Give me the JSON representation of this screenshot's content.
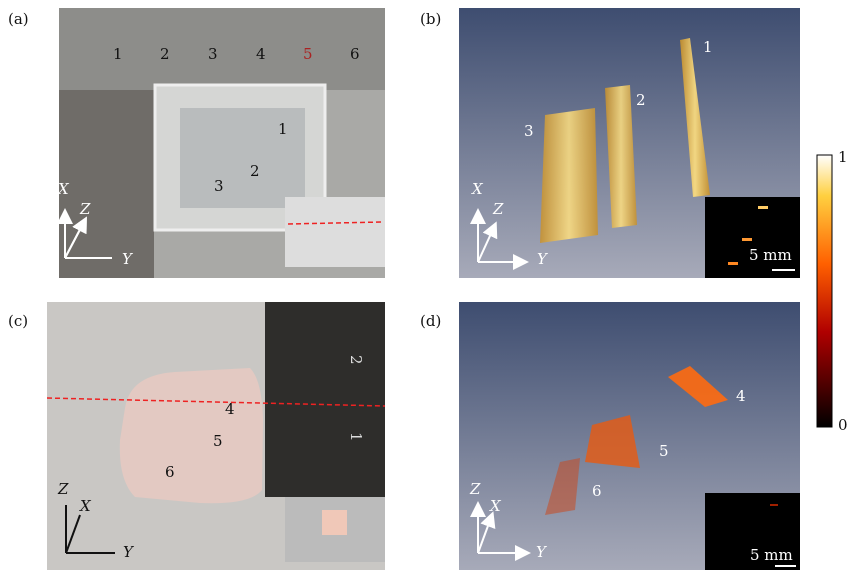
{
  "panels": [
    {
      "label": "(a)",
      "markers": [
        "1",
        "2",
        "3"
      ],
      "axes": [
        "X",
        "Z",
        "Y"
      ],
      "ruler": [
        "1",
        "2",
        "3",
        "4",
        "5",
        "6"
      ]
    },
    {
      "label": "(b)",
      "markers": [
        "1",
        "2",
        "3"
      ],
      "axes": [
        "X",
        "Z",
        "Y"
      ],
      "scale_bar": "5 mm"
    },
    {
      "label": "(c)",
      "markers": [
        "4",
        "5",
        "6"
      ],
      "axes": [
        "Z",
        "X",
        "Y"
      ],
      "ruler": [
        "2",
        "1"
      ]
    },
    {
      "label": "(d)",
      "markers": [
        "4",
        "5",
        "6"
      ],
      "axes": [
        "Z",
        "X",
        "Y"
      ],
      "scale_bar": "5 mm"
    }
  ],
  "colorbar": {
    "max": "1",
    "min": "0"
  }
}
